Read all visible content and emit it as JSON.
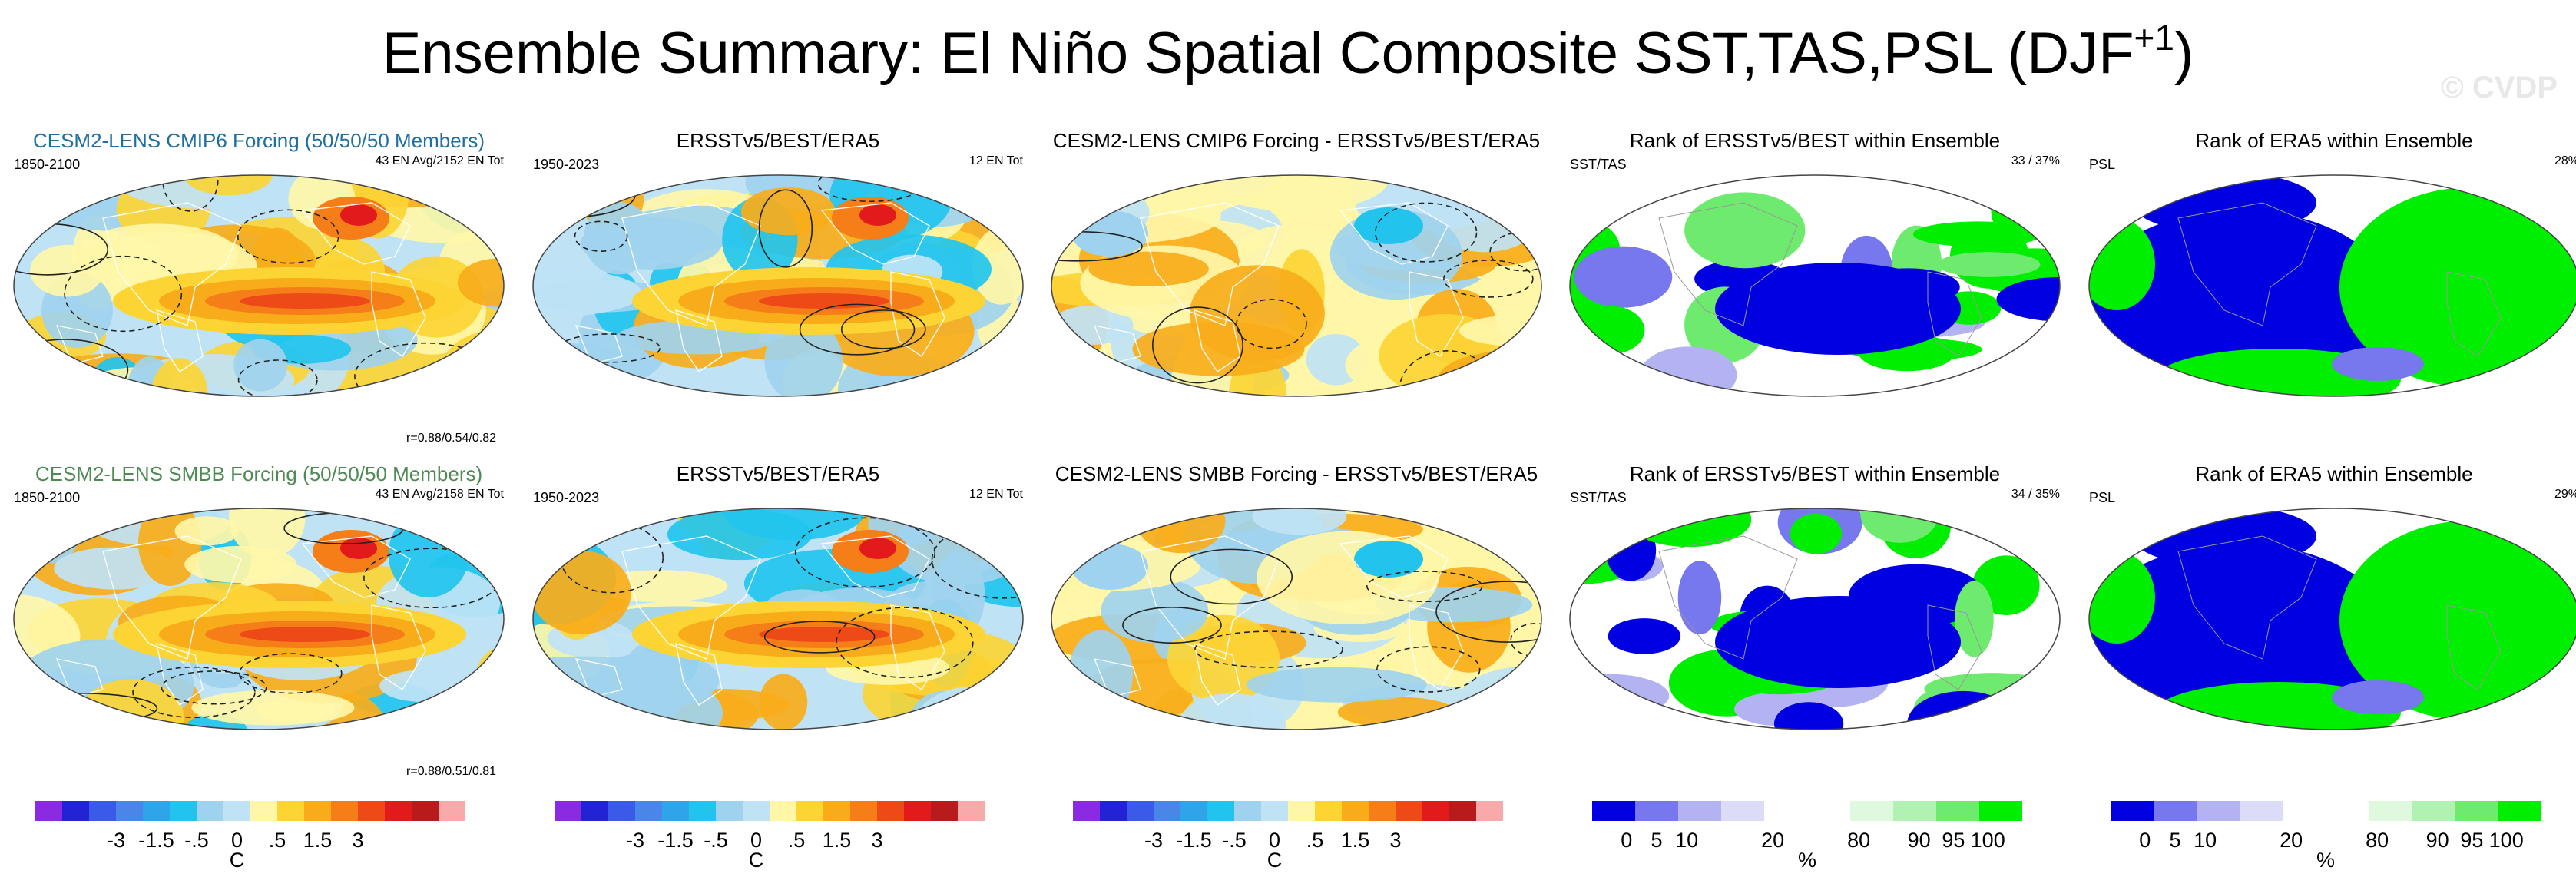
{
  "title": {
    "text": "Ensemble Summary: El Niño Spatial Composite SST,TAS,PSL (DJF",
    "superscript": "+1",
    "close": ")"
  },
  "watermark": "© CVDP",
  "chart_data": [
    {
      "type": "heatmap",
      "row": 1,
      "col": 1,
      "title": "CESM2-LENS CMIP6 Forcing (50/50/50 Members)",
      "period": "1850-2100",
      "stats": "43 EN Avg/2152 EN Tot",
      "correlation": "r=0.88/0.54/0.82",
      "units": "C"
    },
    {
      "type": "heatmap",
      "row": 1,
      "col": 2,
      "title": "ERSSTv5/BEST/ERA5",
      "period": "1950-2023",
      "stats": "12 EN Tot",
      "units": "C"
    },
    {
      "type": "heatmap",
      "row": 1,
      "col": 3,
      "title": "CESM2-LENS CMIP6 Forcing - ERSSTv5/BEST/ERA5",
      "units": "C"
    },
    {
      "type": "heatmap",
      "row": 1,
      "col": 4,
      "title": "Rank of ERSSTv5/BEST within Ensemble",
      "variable": "SST/TAS",
      "stats": "33 /  37%",
      "units": "%"
    },
    {
      "type": "heatmap",
      "row": 1,
      "col": 5,
      "title": "Rank of ERA5 within Ensemble",
      "variable": "PSL",
      "stats": "28%",
      "units": "%"
    },
    {
      "type": "heatmap",
      "row": 2,
      "col": 1,
      "title": "CESM2-LENS SMBB Forcing (50/50/50 Members)",
      "period": "1850-2100",
      "stats": "43 EN Avg/2158 EN Tot",
      "correlation": "r=0.88/0.51/0.81",
      "units": "C"
    },
    {
      "type": "heatmap",
      "row": 2,
      "col": 2,
      "title": "ERSSTv5/BEST/ERA5",
      "period": "1950-2023",
      "stats": "12 EN Tot",
      "units": "C"
    },
    {
      "type": "heatmap",
      "row": 2,
      "col": 3,
      "title": "CESM2-LENS SMBB Forcing - ERSSTv5/BEST/ERA5",
      "units": "C"
    },
    {
      "type": "heatmap",
      "row": 2,
      "col": 4,
      "title": "Rank of ERSSTv5/BEST within Ensemble",
      "variable": "SST/TAS",
      "stats": "34 /  35%",
      "units": "%"
    },
    {
      "type": "heatmap",
      "row": 2,
      "col": 5,
      "title": "Rank of ERA5 within Ensemble",
      "variable": "PSL",
      "stats": "29%",
      "units": "%"
    }
  ],
  "colorbars": {
    "anomaly": {
      "colors": [
        "#8a2be2",
        "#2323d6",
        "#3c5ae8",
        "#4a86e8",
        "#2fa4e8",
        "#22c4ee",
        "#9fd2ee",
        "#bfe3f5",
        "#fff6a8",
        "#fcd535",
        "#f8ac1a",
        "#f57e18",
        "#ee4a18",
        "#e31a1c",
        "#b81b1b",
        "#f8aaaa"
      ],
      "ticks": [
        "-3",
        "-1.5",
        "-.5",
        "0",
        ".5",
        "1.5",
        "3"
      ],
      "unit": "C"
    },
    "rank": {
      "colors": [
        "#0000e0",
        "#7777ee",
        "#b3b3f2",
        "#dcdcf8",
        "#ffffff",
        "#ffffff",
        "#dff9df",
        "#b1f1b1",
        "#6eea6e",
        "#00ee00"
      ],
      "ticks": [
        "0",
        "5",
        "10",
        "20",
        "80",
        "90",
        "95",
        "100"
      ],
      "unit": "%"
    }
  }
}
